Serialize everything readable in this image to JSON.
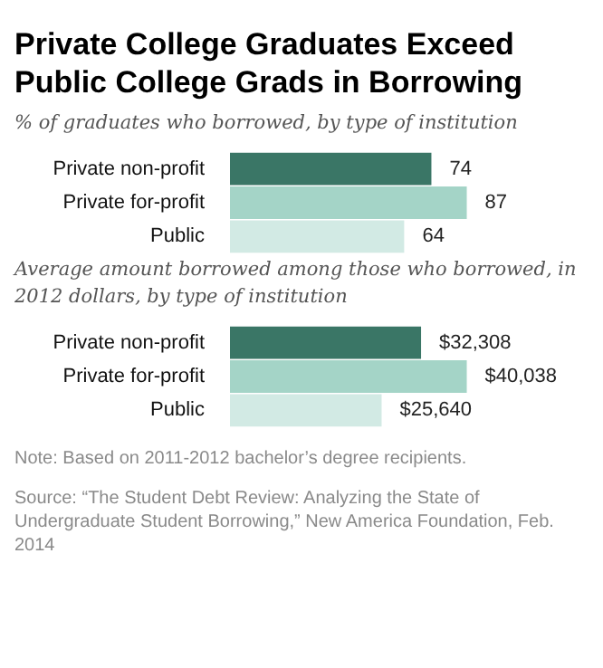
{
  "chart_data": [
    {
      "type": "bar",
      "orientation": "horizontal",
      "title": "Private College Graduates Exceed Public College Grads in Borrowing",
      "subtitle": "% of graduates who borrowed, by type of institution",
      "categories": [
        "Private non-profit",
        "Private for-profit",
        "Public"
      ],
      "values": [
        74,
        87,
        64
      ],
      "colors": [
        "#3a7666",
        "#a4d4c7",
        "#d2eae4"
      ],
      "tick_labels": "y",
      "data_labels": true
    },
    {
      "type": "bar",
      "orientation": "horizontal",
      "subtitle": "Average amount borrowed among those who borrowed, in 2012 dollars, by type of institution",
      "categories": [
        "Private non-profit",
        "Private for-profit",
        "Public"
      ],
      "values": [
        32308,
        40038,
        25640
      ],
      "value_labels": [
        "$32,308",
        "$40,038",
        "$25,640"
      ],
      "colors": [
        "#3a7666",
        "#a4d4c7",
        "#d2eae4"
      ],
      "tick_labels": "y",
      "annotations": [
        "Note: Based on 2011-2012 bachelor’s degree recipients.",
        "Source: “The Student Debt Review: Analyzing the State of Undergraduate Student Borrowing,” New America Foundation, Feb. 2014"
      ]
    }
  ]
}
